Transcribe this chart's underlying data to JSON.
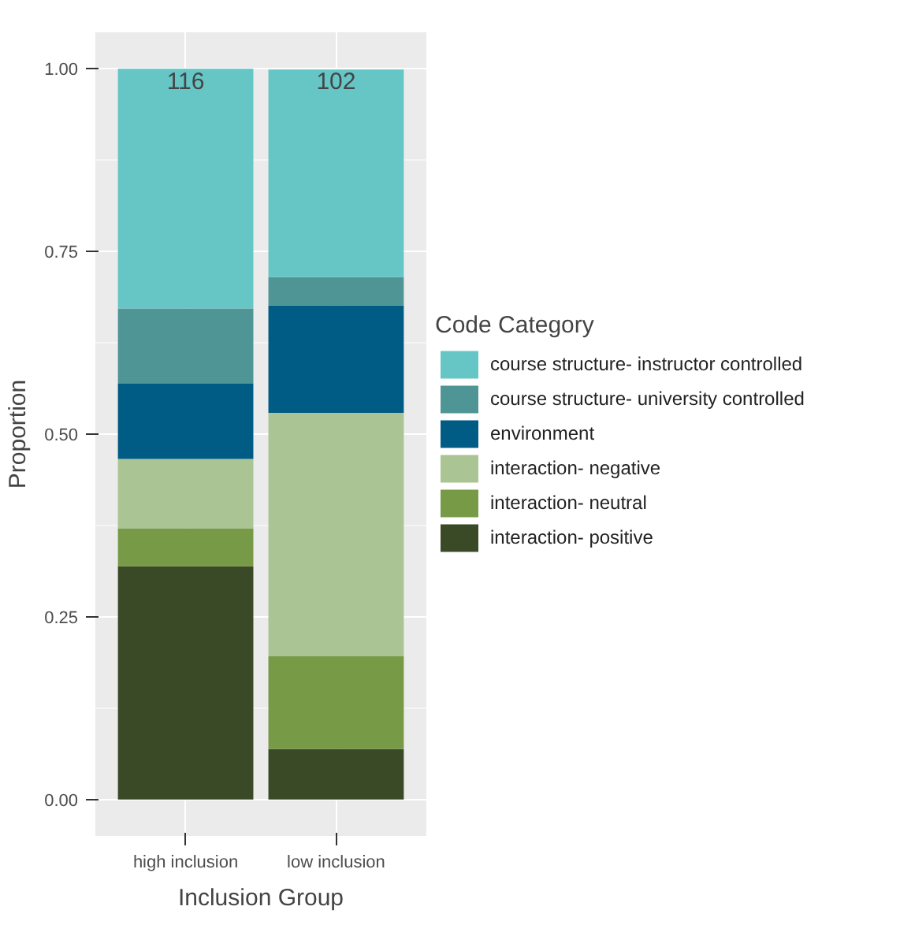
{
  "chart_data": {
    "type": "bar",
    "stacked": true,
    "xlabel": "Inclusion Group",
    "ylabel": "Proportion",
    "legend_title": "Code Category",
    "legend": "right",
    "grid": true,
    "categories": [
      "high inclusion",
      "low inclusion"
    ],
    "ylim": [
      -0.05,
      1.05
    ],
    "yticks": [
      {
        "value": 0,
        "label": "0.00"
      },
      {
        "value": 0.25,
        "label": "0.25"
      },
      {
        "value": 0.5,
        "label": "0.50"
      },
      {
        "value": 0.75,
        "label": "0.75"
      },
      {
        "value": 1,
        "label": "1.00"
      }
    ],
    "series": [
      {
        "name": "interaction- positive",
        "color": "#3b4a26",
        "values": [
          0.319,
          0.069
        ]
      },
      {
        "name": "interaction- neutral",
        "color": "#779a47",
        "values": [
          0.052,
          0.127
        ]
      },
      {
        "name": "interaction- negative",
        "color": "#abc493",
        "values": [
          0.095,
          0.333
        ]
      },
      {
        "name": "environment",
        "color": "#005c85",
        "values": [
          0.103,
          0.147
        ]
      },
      {
        "name": "course structure- university controlled",
        "color": "#4f9595",
        "values": [
          0.103,
          0.039
        ]
      },
      {
        "name": "course structure- instructor controlled",
        "color": "#66c6c6",
        "values": [
          0.328,
          0.284
        ]
      }
    ],
    "annotations": [
      {
        "text": "116",
        "x": "high inclusion",
        "y": 1
      },
      {
        "text": "102",
        "x": "low inclusion",
        "y": 1
      }
    ]
  }
}
